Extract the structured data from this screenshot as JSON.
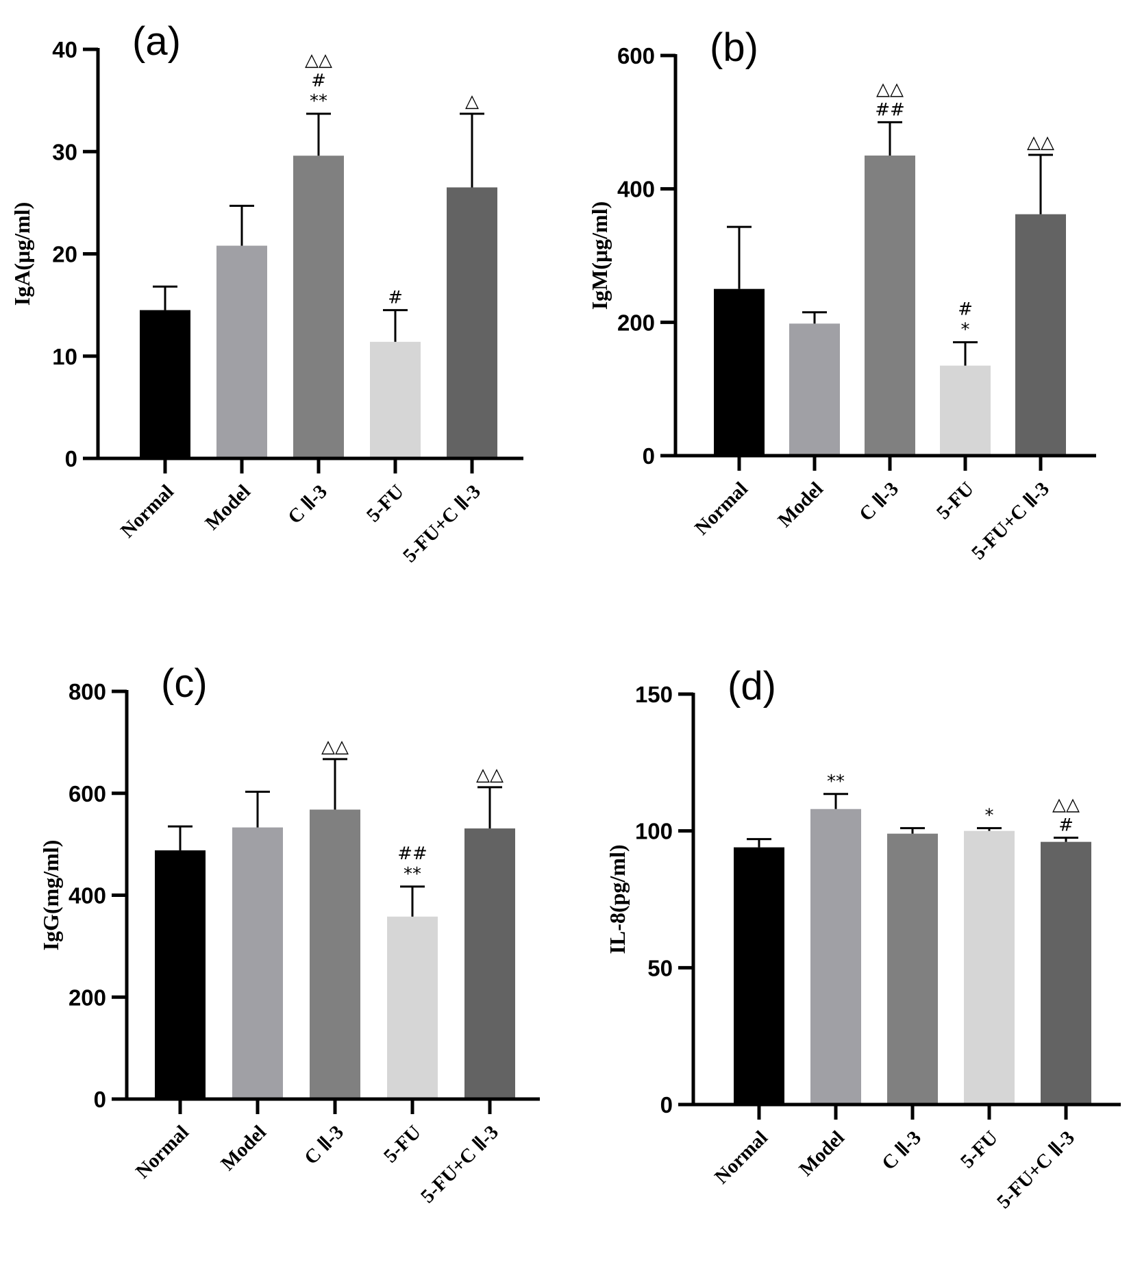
{
  "chart_data": [
    {
      "type": "bar",
      "panel_label": "(a)",
      "ylabel": "IgA(μg/ml)",
      "ylim": [
        0,
        40
      ],
      "yticks": [
        0,
        10,
        20,
        30,
        40
      ],
      "categories": [
        "Normal",
        "Model",
        "C Ⅱ-3",
        "5-FU",
        "5-FU+C Ⅱ-3"
      ],
      "values": [
        14.5,
        20.8,
        29.6,
        11.4,
        26.5
      ],
      "error_upper": [
        16.8,
        24.7,
        33.7,
        14.5,
        33.7
      ],
      "annotations": [
        [],
        [],
        [
          "△△",
          "#",
          "**"
        ],
        [
          "#"
        ],
        [
          "△"
        ]
      ]
    },
    {
      "type": "bar",
      "panel_label": "(b)",
      "ylabel": "IgM(μg/ml)",
      "ylim": [
        0,
        600
      ],
      "yticks": [
        0,
        200,
        400,
        600
      ],
      "categories": [
        "Normal",
        "Model",
        "C Ⅱ-3",
        "5-FU",
        "5-FU+C Ⅱ-3"
      ],
      "values": [
        250,
        198,
        450,
        135,
        362
      ],
      "error_upper": [
        343,
        215,
        500,
        170,
        451
      ],
      "annotations": [
        [],
        [],
        [
          "△△",
          "##"
        ],
        [
          "#",
          "*"
        ],
        [
          "△△"
        ]
      ]
    },
    {
      "type": "bar",
      "panel_label": "(c)",
      "ylabel": "IgG(mg/ml)",
      "ylim": [
        0,
        800
      ],
      "yticks": [
        0,
        200,
        400,
        600,
        800
      ],
      "categories": [
        "Normal",
        "Model",
        "C Ⅱ-3",
        "5-FU",
        "5-FU+C Ⅱ-3"
      ],
      "values": [
        488,
        533,
        568,
        358,
        531
      ],
      "error_upper": [
        535,
        603,
        667,
        417,
        612
      ],
      "annotations": [
        [],
        [],
        [
          "△△"
        ],
        [
          "##",
          "**"
        ],
        [
          "△△"
        ]
      ]
    },
    {
      "type": "bar",
      "panel_label": "(d)",
      "ylabel": "IL-8(pg/ml)",
      "ylim": [
        0,
        150
      ],
      "yticks": [
        0,
        50,
        100,
        150
      ],
      "categories": [
        "Normal",
        "Model",
        "C Ⅱ-3",
        "5-FU",
        "5-FU+C Ⅱ-3"
      ],
      "values": [
        94,
        108,
        99,
        100,
        96
      ],
      "error_upper": [
        97,
        113.5,
        101,
        101,
        97.5
      ],
      "annotations": [
        [],
        [
          "**"
        ],
        [],
        [
          "*"
        ],
        [
          "△△",
          "#"
        ]
      ]
    }
  ],
  "bar_colors": [
    "#000000",
    "#a0a0a5",
    "#808080",
    "#d6d6d6",
    "#636363"
  ]
}
